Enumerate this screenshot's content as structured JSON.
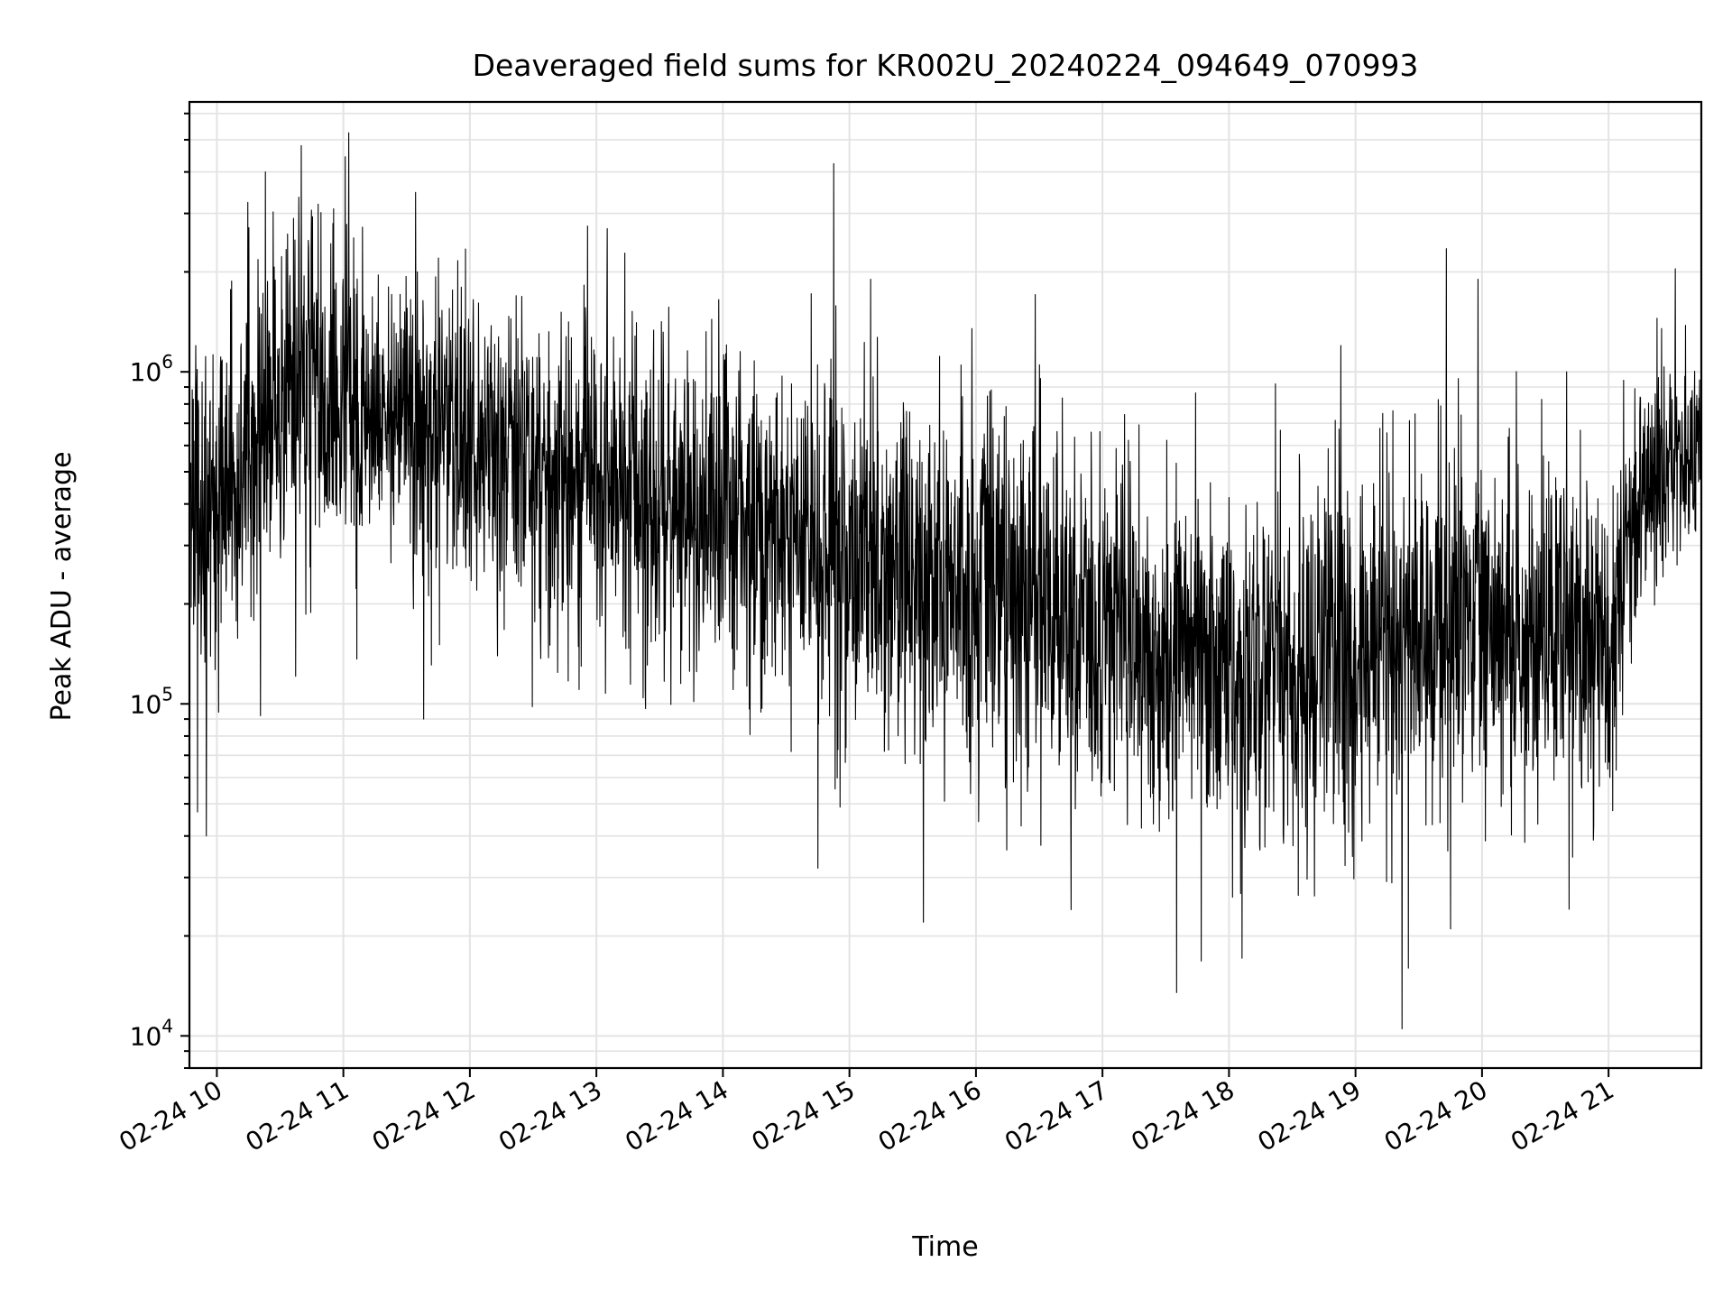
{
  "chart_data": {
    "type": "line",
    "title": "Deaveraged field sums for KR002U_20240224_094649_070993",
    "xlabel": "Time",
    "ylabel": "Peak ADU - average",
    "y_scale": "log",
    "xlim": [
      "2024-02-24 09:47",
      "2024-02-24 21:44"
    ],
    "ylim": [
      8000,
      6500000
    ],
    "x_tick_labels": [
      "02-24 10",
      "02-24 11",
      "02-24 12",
      "02-24 13",
      "02-24 14",
      "02-24 15",
      "02-24 16",
      "02-24 17",
      "02-24 18",
      "02-24 19",
      "02-24 20",
      "02-24 21"
    ],
    "x_ticks": [
      "2024-02-24 10:00",
      "2024-02-24 11:00",
      "2024-02-24 12:00",
      "2024-02-24 13:00",
      "2024-02-24 14:00",
      "2024-02-24 15:00",
      "2024-02-24 16:00",
      "2024-02-24 17:00",
      "2024-02-24 18:00",
      "2024-02-24 19:00",
      "2024-02-24 20:00",
      "2024-02-24 21:00"
    ],
    "y_ticks": [
      10000,
      100000,
      1000000
    ],
    "y_tick_labels": [
      {
        "base": "10",
        "exp": "4"
      },
      {
        "base": "10",
        "exp": "5"
      },
      {
        "base": "10",
        "exp": "6"
      }
    ],
    "grid": "major and minor",
    "line_color": "#000000",
    "series": [
      {
        "x": [
          "2024-02-24 09:47",
          "2024-02-24 10:00",
          "2024-02-24 10:15",
          "2024-02-24 10:30",
          "2024-02-24 10:45",
          "2024-02-24 11:00",
          "2024-02-24 11:30",
          "2024-02-24 12:00",
          "2024-02-24 12:30",
          "2024-02-24 13:00",
          "2024-02-24 13:30",
          "2024-02-24 14:00",
          "2024-02-24 14:30",
          "2024-02-24 15:00",
          "2024-02-24 15:30",
          "2024-02-24 16:00",
          "2024-02-24 16:30",
          "2024-02-24 17:00",
          "2024-02-24 17:30",
          "2024-02-24 18:00",
          "2024-02-24 18:30",
          "2024-02-24 19:00",
          "2024-02-24 19:30",
          "2024-02-24 20:00",
          "2024-02-24 20:30",
          "2024-02-24 21:00",
          "2024-02-24 21:15",
          "2024-02-24 21:44"
        ],
        "y": [
          350000,
          400000,
          600000,
          800000,
          900000,
          800000,
          700000,
          600000,
          500000,
          420000,
          400000,
          380000,
          300000,
          280000,
          230000,
          220000,
          190000,
          170000,
          140000,
          130000,
          130000,
          140000,
          160000,
          170000,
          160000,
          130000,
          450000,
          550000
        ],
        "spread_decades": [
          0.45,
          0.45,
          0.5,
          0.5,
          0.5,
          0.45,
          0.45,
          0.42,
          0.42,
          0.45,
          0.45,
          0.45,
          0.45,
          0.5,
          0.5,
          0.5,
          0.5,
          0.5,
          0.5,
          0.5,
          0.5,
          0.5,
          0.5,
          0.45,
          0.45,
          0.45,
          0.3,
          0.25
        ],
        "spikes": [
          {
            "x": "2024-02-24 09:55",
            "y": 40000
          },
          {
            "x": "2024-02-24 09:50",
            "y": 1200000
          },
          {
            "x": "2024-02-24 10:23",
            "y": 4000000
          },
          {
            "x": "2024-02-24 10:40",
            "y": 4800000
          },
          {
            "x": "2024-02-24 10:48",
            "y": 3200000
          },
          {
            "x": "2024-02-24 11:35",
            "y": 2000000
          },
          {
            "x": "2024-02-24 11:38",
            "y": 90000
          },
          {
            "x": "2024-02-24 13:05",
            "y": 2700000
          },
          {
            "x": "2024-02-24 14:45",
            "y": 32000
          },
          {
            "x": "2024-02-24 15:10",
            "y": 1900000
          },
          {
            "x": "2024-02-24 15:35",
            "y": 22000
          },
          {
            "x": "2024-02-24 15:58",
            "y": 1350000
          },
          {
            "x": "2024-02-24 16:30",
            "y": 1050000
          },
          {
            "x": "2024-02-24 16:45",
            "y": 24000
          },
          {
            "x": "2024-02-24 17:35",
            "y": 13500
          },
          {
            "x": "2024-02-24 18:53",
            "y": 1200000
          },
          {
            "x": "2024-02-24 18:22",
            "y": 920000
          },
          {
            "x": "2024-02-24 19:22",
            "y": 10500
          },
          {
            "x": "2024-02-24 19:25",
            "y": 16000
          },
          {
            "x": "2024-02-24 19:43",
            "y": 2350000
          },
          {
            "x": "2024-02-24 19:45",
            "y": 21000
          },
          {
            "x": "2024-02-24 19:58",
            "y": 1900000
          },
          {
            "x": "2024-02-24 20:40",
            "y": 1000000
          },
          {
            "x": "2024-02-24 21:25",
            "y": 1350000
          }
        ]
      }
    ]
  }
}
